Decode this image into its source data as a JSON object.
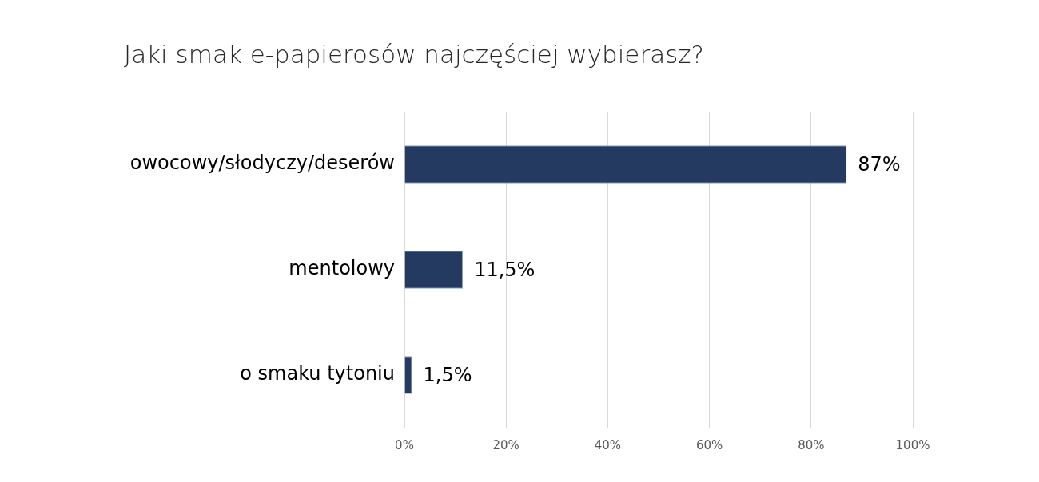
{
  "chart_data": {
    "type": "bar",
    "orientation": "horizontal",
    "title": "Jaki smak e-papierosów najczęściej wybierasz?",
    "categories": [
      "owocowy/słodyczy/deserów",
      "mentolowy",
      "o smaku tytoniu"
    ],
    "values": [
      87,
      11.5,
      1.5
    ],
    "value_labels": [
      "87%",
      "11,5%",
      "1,5%"
    ],
    "color": "#253a61",
    "xlim": [
      0,
      100
    ],
    "xticks": [
      {
        "value": 0,
        "label": "0%"
      },
      {
        "value": 20,
        "label": "20%"
      },
      {
        "value": 40,
        "label": "40%"
      },
      {
        "value": 60,
        "label": "60%"
      },
      {
        "value": 80,
        "label": "80%"
      },
      {
        "value": 100,
        "label": "100%"
      }
    ],
    "grid": "x",
    "legend": false
  }
}
